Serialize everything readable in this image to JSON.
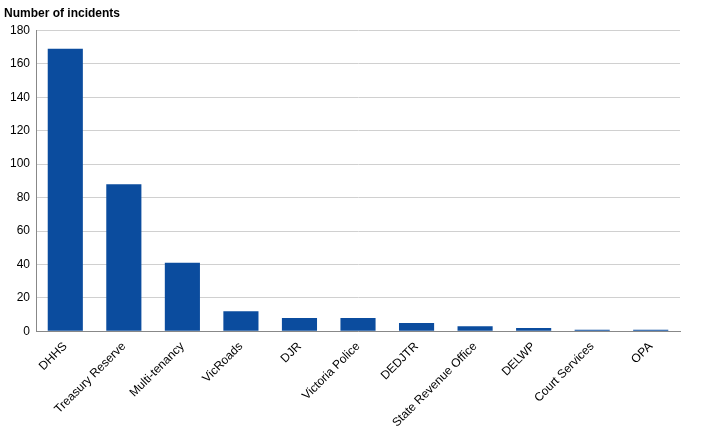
{
  "chart_data": {
    "type": "bar",
    "y_label": "Number of incidents",
    "categories": [
      "DHHS",
      "Treasury Reserve",
      "Multi-tenancy",
      "VicRoads",
      "DJR",
      "Victoria Police",
      "DEDJTR",
      "State Revenue Office",
      "DELWP",
      "Court Services",
      "OPA"
    ],
    "values": [
      169,
      88,
      41,
      12,
      8,
      8,
      5,
      3,
      2,
      1,
      1
    ],
    "color": "#0b4c9e",
    "ylim": [
      0,
      180
    ],
    "yticks": [
      0,
      20,
      40,
      60,
      80,
      100,
      120,
      140,
      160,
      180
    ],
    "grid": true
  }
}
